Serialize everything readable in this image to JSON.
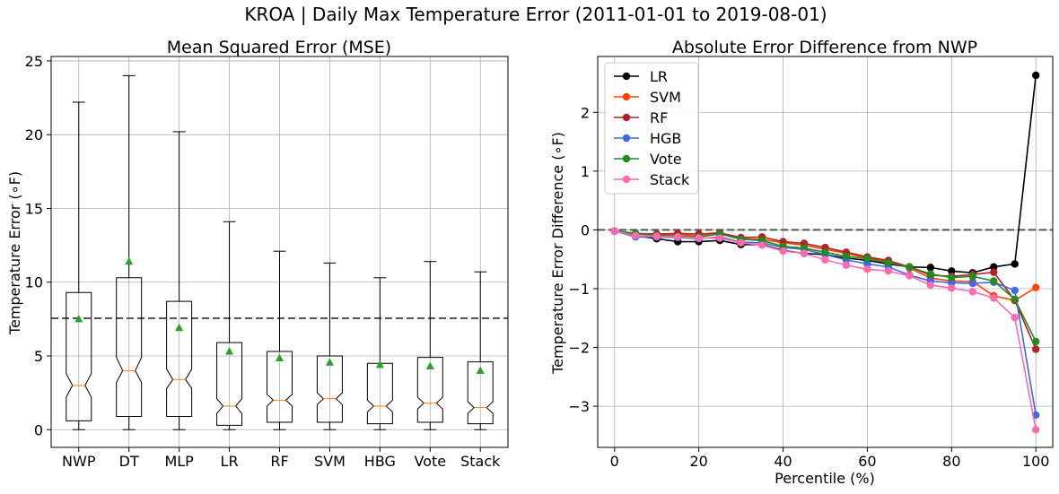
{
  "suptitle": "KROA | Daily Max Temperature Error (2011-01-01 to 2019-08-01)",
  "chart_data": [
    {
      "type": "box",
      "title": "Mean Squared Error (MSE)",
      "xlabel": "",
      "ylabel": "Temperature Error (∘F)",
      "ylim": [
        -1.2,
        25.3
      ],
      "yticks": [
        0,
        5,
        10,
        15,
        20,
        25
      ],
      "grid": true,
      "reference_line": 7.55,
      "categories": [
        "NWP",
        "DT",
        "MLP",
        "LR",
        "RF",
        "SVM",
        "HBG",
        "Vote",
        "Stack"
      ],
      "boxes": [
        {
          "whislo": 0,
          "q1": 0.6,
          "med": 3.0,
          "q3": 9.3,
          "whishi": 22.2,
          "notch_lo": 2.2,
          "notch_hi": 3.8,
          "mean": 7.5
        },
        {
          "whislo": 0,
          "q1": 0.9,
          "med": 4.0,
          "q3": 10.3,
          "whishi": 24.0,
          "notch_lo": 3.2,
          "notch_hi": 4.9,
          "mean": 11.4
        },
        {
          "whislo": 0,
          "q1": 0.9,
          "med": 3.4,
          "q3": 8.7,
          "whishi": 20.2,
          "notch_lo": 2.8,
          "notch_hi": 4.1,
          "mean": 6.9
        },
        {
          "whislo": 0,
          "q1": 0.3,
          "med": 1.6,
          "q3": 5.9,
          "whishi": 14.1,
          "notch_lo": 1.1,
          "notch_hi": 2.1,
          "mean": 5.3
        },
        {
          "whislo": 0,
          "q1": 0.5,
          "med": 2.0,
          "q3": 5.3,
          "whishi": 12.1,
          "notch_lo": 1.6,
          "notch_hi": 2.4,
          "mean": 4.85
        },
        {
          "whislo": 0,
          "q1": 0.5,
          "med": 2.1,
          "q3": 5.0,
          "whishi": 11.3,
          "notch_lo": 1.7,
          "notch_hi": 2.5,
          "mean": 4.55
        },
        {
          "whislo": 0,
          "q1": 0.4,
          "med": 1.6,
          "q3": 4.5,
          "whishi": 10.3,
          "notch_lo": 1.2,
          "notch_hi": 2.0,
          "mean": 4.4
        },
        {
          "whislo": 0,
          "q1": 0.5,
          "med": 1.8,
          "q3": 4.9,
          "whishi": 11.4,
          "notch_lo": 1.4,
          "notch_hi": 2.2,
          "mean": 4.3
        },
        {
          "whislo": 0,
          "q1": 0.4,
          "med": 1.5,
          "q3": 4.6,
          "whishi": 10.7,
          "notch_lo": 1.1,
          "notch_hi": 1.9,
          "mean": 4.0
        }
      ],
      "colors": {
        "median": "#ff7f0e",
        "mean_marker": "#2ca02c",
        "box": "#000000"
      }
    },
    {
      "type": "line",
      "title": "Absolute Error Difference from NWP",
      "xlabel": "Percentile (%)",
      "ylabel": "Temperature Error Difference (∘F)",
      "xlim": [
        -4,
        104
      ],
      "ylim": [
        -3.7,
        2.95
      ],
      "xticks": [
        0,
        20,
        40,
        60,
        80,
        100
      ],
      "yticks": [
        -3,
        -2,
        -1,
        0,
        1,
        2
      ],
      "grid": true,
      "reference_line": 0,
      "legend": "top-left",
      "x": [
        0,
        5,
        10,
        15,
        20,
        25,
        30,
        35,
        40,
        45,
        50,
        55,
        60,
        65,
        70,
        75,
        80,
        85,
        90,
        95,
        100
      ],
      "series": [
        {
          "name": "LR",
          "color": "#000000",
          "values": [
            -0.02,
            -0.1,
            -0.15,
            -0.2,
            -0.2,
            -0.18,
            -0.25,
            -0.25,
            -0.35,
            -0.4,
            -0.42,
            -0.48,
            -0.52,
            -0.58,
            -0.63,
            -0.64,
            -0.7,
            -0.73,
            -0.63,
            -0.58,
            2.63
          ]
        },
        {
          "name": "SVM",
          "color": "#ff4500",
          "values": [
            -0.02,
            -0.07,
            -0.09,
            -0.08,
            -0.1,
            -0.06,
            -0.15,
            -0.16,
            -0.22,
            -0.26,
            -0.33,
            -0.4,
            -0.48,
            -0.53,
            -0.65,
            -0.82,
            -0.87,
            -0.88,
            -1.12,
            -1.2,
            -0.98
          ]
        },
        {
          "name": "RF",
          "color": "#b22222",
          "values": [
            -0.02,
            -0.06,
            -0.07,
            -0.06,
            -0.07,
            -0.05,
            -0.13,
            -0.12,
            -0.2,
            -0.23,
            -0.3,
            -0.38,
            -0.46,
            -0.52,
            -0.63,
            -0.77,
            -0.79,
            -0.76,
            -0.72,
            -1.2,
            -2.03
          ]
        },
        {
          "name": "HGB",
          "color": "#4169e1",
          "values": [
            -0.02,
            -0.12,
            -0.12,
            -0.13,
            -0.15,
            -0.12,
            -0.21,
            -0.22,
            -0.3,
            -0.33,
            -0.42,
            -0.51,
            -0.58,
            -0.63,
            -0.77,
            -0.87,
            -0.9,
            -0.91,
            -0.89,
            -1.03,
            -3.15
          ]
        },
        {
          "name": "Vote",
          "color": "#228b22",
          "values": [
            -0.02,
            -0.06,
            -0.09,
            -0.11,
            -0.12,
            -0.07,
            -0.16,
            -0.18,
            -0.28,
            -0.31,
            -0.38,
            -0.45,
            -0.49,
            -0.56,
            -0.63,
            -0.75,
            -0.81,
            -0.79,
            -0.87,
            -1.18,
            -1.9
          ]
        },
        {
          "name": "Stack",
          "color": "#ff69b4",
          "values": [
            -0.02,
            -0.1,
            -0.11,
            -0.12,
            -0.14,
            -0.14,
            -0.22,
            -0.26,
            -0.36,
            -0.4,
            -0.51,
            -0.6,
            -0.67,
            -0.7,
            -0.78,
            -0.94,
            -0.99,
            -1.05,
            -1.16,
            -1.49,
            -3.4
          ]
        }
      ]
    }
  ]
}
